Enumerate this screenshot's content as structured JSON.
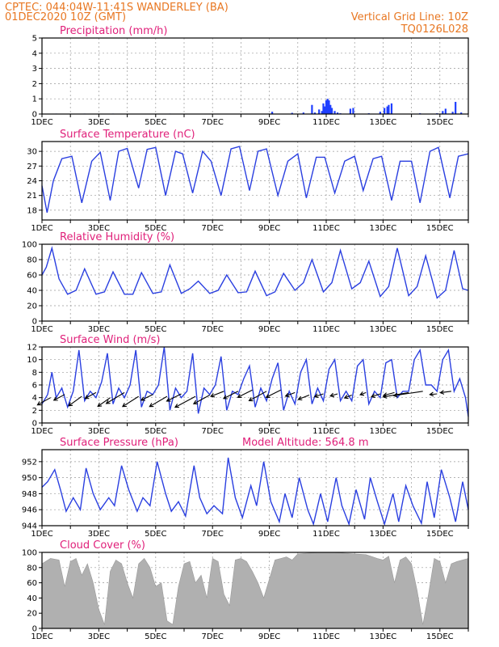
{
  "header": {
    "line1_left": "CPTEC:   044:04W-11:41S  WANDERLEY (BA)",
    "line2_left": "01DEC2020 10Z (GMT)",
    "line1_right": "Vertical Grid Line: 10Z",
    "line2_right": "TQ0126L028"
  },
  "colors": {
    "header": "#e87722",
    "panel_title": "#e0207a",
    "line_series": "#2a3fe0",
    "precip_bars": "#1f3fff",
    "cloud_fill": "#b0b0b0"
  },
  "x_axis": {
    "tick_labels": [
      "1DEC",
      "3DEC",
      "5DEC",
      "7DEC",
      "9DEC",
      "11DEC",
      "13DEC",
      "15DEC"
    ],
    "range_days": [
      1,
      16
    ]
  },
  "chart_data": [
    {
      "type": "bar",
      "title": "Precipitation (mm/h)",
      "ylim": [
        0,
        5
      ],
      "yticks": [
        0,
        1,
        2,
        3,
        4,
        5
      ],
      "x": [
        1.5,
        2.5,
        3.5,
        5.5,
        9.1,
        9.8,
        10.2,
        10.5,
        10.6,
        10.75,
        10.85,
        10.9,
        10.95,
        11.0,
        11.05,
        11.1,
        11.15,
        11.2,
        11.3,
        11.4,
        11.5,
        11.85,
        11.95,
        12.5,
        12.9,
        13.05,
        13.15,
        13.2,
        13.3,
        14.3,
        14.9,
        15.1,
        15.2,
        15.45,
        15.55,
        15.75
      ],
      "values": [
        0.03,
        0.03,
        0.03,
        0.03,
        0.15,
        0.08,
        0.1,
        0.6,
        0.1,
        0.3,
        0.2,
        0.7,
        0.5,
        0.9,
        1.0,
        0.9,
        0.6,
        0.4,
        0.2,
        0.1,
        0.05,
        0.35,
        0.4,
        0.05,
        0.15,
        0.4,
        0.5,
        0.6,
        0.7,
        0.05,
        0.05,
        0.2,
        0.35,
        0.15,
        0.8,
        0.1
      ]
    },
    {
      "type": "line",
      "title": "Surface Temperature (nC)",
      "ylim": [
        16,
        32
      ],
      "yticks": [
        18,
        21,
        24,
        27,
        30
      ],
      "x": [
        1.0,
        1.18,
        1.4,
        1.7,
        2.05,
        2.4,
        2.75,
        3.05,
        3.4,
        3.7,
        4.0,
        4.4,
        4.7,
        5.0,
        5.35,
        5.7,
        5.95,
        6.3,
        6.65,
        6.95,
        7.3,
        7.65,
        7.95,
        8.3,
        8.6,
        8.9,
        9.3,
        9.65,
        10.0,
        10.3,
        10.65,
        10.95,
        11.3,
        11.65,
        12.0,
        12.3,
        12.65,
        12.95,
        13.3,
        13.6,
        14.0,
        14.3,
        14.65,
        14.95,
        15.35,
        15.65,
        16.0
      ],
      "values": [
        23.0,
        17.5,
        24.0,
        28.5,
        29.0,
        19.5,
        28.0,
        29.8,
        20.0,
        30.0,
        30.6,
        22.5,
        30.4,
        30.8,
        21.0,
        30.0,
        29.5,
        21.5,
        30.0,
        28.0,
        21.0,
        30.5,
        31.0,
        22.0,
        30.0,
        30.5,
        21.0,
        28.0,
        29.5,
        20.5,
        28.8,
        28.8,
        21.5,
        28.0,
        29.0,
        22.0,
        28.5,
        29.0,
        20.0,
        28.0,
        28.0,
        19.5,
        30.0,
        30.8,
        20.5,
        29.0,
        29.5
      ]
    },
    {
      "type": "line",
      "title": "Relative Humidity (%)",
      "ylim": [
        0,
        100
      ],
      "yticks": [
        0,
        20,
        40,
        60,
        80,
        100
      ],
      "x": [
        1.0,
        1.15,
        1.35,
        1.6,
        1.9,
        2.2,
        2.5,
        2.9,
        3.2,
        3.5,
        3.9,
        4.2,
        4.5,
        4.9,
        5.2,
        5.5,
        5.9,
        6.2,
        6.5,
        6.9,
        7.2,
        7.5,
        7.9,
        8.2,
        8.5,
        8.9,
        9.2,
        9.5,
        9.9,
        10.2,
        10.5,
        10.9,
        11.2,
        11.5,
        11.9,
        12.2,
        12.5,
        12.9,
        13.2,
        13.5,
        13.9,
        14.2,
        14.5,
        14.9,
        15.2,
        15.5,
        15.8,
        16.0
      ],
      "values": [
        60.0,
        70.0,
        95.0,
        55.0,
        35.0,
        40.0,
        68.0,
        35.0,
        38.0,
        64.0,
        35.0,
        35.0,
        63.0,
        36.0,
        38.0,
        73.0,
        36.0,
        42.0,
        52.0,
        36.0,
        40.0,
        60.0,
        37.0,
        38.0,
        65.0,
        33.0,
        38.0,
        62.0,
        40.0,
        50.0,
        80.0,
        38.0,
        50.0,
        92.0,
        42.0,
        50.0,
        78.0,
        32.0,
        45.0,
        95.0,
        33.0,
        45.0,
        85.0,
        30.0,
        40.0,
        92.0,
        42.0,
        40.0
      ]
    },
    {
      "type": "line",
      "title": "Surface Wind (m/s)",
      "ylim": [
        0,
        12
      ],
      "yticks": [
        0,
        2,
        4,
        6,
        8,
        10,
        12
      ],
      "x": [
        1.0,
        1.2,
        1.35,
        1.5,
        1.7,
        1.9,
        2.1,
        2.3,
        2.5,
        2.7,
        2.9,
        3.1,
        3.3,
        3.5,
        3.7,
        3.9,
        4.1,
        4.3,
        4.5,
        4.7,
        4.9,
        5.1,
        5.3,
        5.5,
        5.7,
        5.9,
        6.1,
        6.3,
        6.5,
        6.7,
        6.9,
        7.1,
        7.3,
        7.5,
        7.7,
        7.9,
        8.1,
        8.3,
        8.5,
        8.7,
        8.9,
        9.1,
        9.3,
        9.5,
        9.7,
        9.9,
        10.1,
        10.3,
        10.5,
        10.7,
        10.9,
        11.1,
        11.3,
        11.5,
        11.7,
        11.9,
        12.1,
        12.3,
        12.5,
        12.7,
        12.9,
        13.1,
        13.3,
        13.5,
        13.7,
        13.9,
        14.1,
        14.3,
        14.5,
        14.7,
        14.9,
        15.1,
        15.3,
        15.5,
        15.7,
        15.9,
        16.0
      ],
      "values": [
        3.0,
        4.5,
        8.0,
        4.0,
        5.5,
        2.5,
        5.0,
        11.5,
        3.5,
        5.0,
        4.0,
        6.5,
        11.0,
        3.0,
        5.5,
        4.0,
        6.0,
        11.5,
        2.5,
        5.0,
        4.5,
        6.0,
        12.0,
        2.0,
        5.5,
        4.0,
        5.0,
        11.0,
        1.5,
        5.5,
        4.5,
        6.0,
        10.5,
        2.0,
        5.0,
        4.5,
        7.0,
        9.0,
        2.5,
        5.5,
        3.5,
        7.0,
        9.5,
        2.0,
        5.0,
        3.0,
        8.0,
        10.0,
        3.0,
        5.5,
        3.5,
        8.5,
        10.0,
        3.5,
        5.0,
        3.5,
        9.0,
        10.0,
        3.0,
        5.0,
        4.0,
        9.5,
        10.0,
        4.0,
        5.0,
        5.0,
        10.0,
        11.5,
        6.0,
        6.0,
        5.0,
        10.0,
        11.5,
        5.0,
        7.0,
        4.0,
        1.0
      ],
      "vectors": {
        "x": [
          1.3,
          1.8,
          2.4,
          2.9,
          3.4,
          3.9,
          4.4,
          4.9,
          5.4,
          5.9,
          6.4,
          6.9,
          7.4,
          7.9,
          8.4,
          8.9,
          9.4,
          9.9,
          10.4,
          10.9,
          11.4,
          11.9,
          12.4,
          12.9,
          13.4,
          13.9,
          14.4,
          14.9,
          15.4
        ],
        "u": [
          -1.8,
          -1.5,
          -1.8,
          -1.5,
          -1.7,
          -2.5,
          -2.2,
          -1.6,
          -2.4,
          -2.0,
          -2.8,
          -2.2,
          -1.8,
          -2.0,
          -2.0,
          -2.4,
          -2.0,
          -1.3,
          -1.5,
          -1.2,
          -1.0,
          -1.0,
          -0.8,
          -1.2,
          -1.5,
          -3.5,
          -4.0,
          -1.0,
          -1.5
        ],
        "v": [
          -1.0,
          -0.8,
          -1.3,
          -0.8,
          -1.2,
          -1.5,
          -1.4,
          -0.8,
          -1.4,
          -1.0,
          -1.5,
          -1.2,
          -0.7,
          -1.0,
          -1.0,
          -1.3,
          -1.0,
          -0.5,
          -0.6,
          -0.4,
          -0.3,
          -0.4,
          -0.3,
          -0.4,
          -0.4,
          -0.6,
          -0.6,
          -0.1,
          -0.2
        ],
        "y": [
          4.0,
          4.5,
          4.2,
          4.8,
          4.0,
          4.8,
          4.2,
          4.5,
          4.2,
          4.6,
          4.2,
          4.4,
          5.0,
          5.0,
          5.2,
          5.0,
          5.2,
          4.8,
          4.4,
          4.6,
          4.6,
          4.4,
          4.8,
          4.6,
          4.8,
          4.8,
          5.0,
          4.6,
          5.0
        ]
      }
    },
    {
      "type": "line",
      "title": "Surface Pressure (hPa)",
      "annotation": "Model Altitude: 564.8 m",
      "ylim": [
        944,
        953.5
      ],
      "yticks": [
        944,
        946,
        948,
        950,
        952
      ],
      "x": [
        1.0,
        1.2,
        1.45,
        1.65,
        1.85,
        2.1,
        2.35,
        2.55,
        2.8,
        3.05,
        3.35,
        3.55,
        3.8,
        4.05,
        4.35,
        4.55,
        4.8,
        5.05,
        5.35,
        5.55,
        5.8,
        6.05,
        6.35,
        6.55,
        6.8,
        7.05,
        7.35,
        7.55,
        7.8,
        8.05,
        8.35,
        8.55,
        8.8,
        9.05,
        9.35,
        9.55,
        9.8,
        10.05,
        10.35,
        10.55,
        10.8,
        11.05,
        11.35,
        11.55,
        11.8,
        12.05,
        12.35,
        12.55,
        12.8,
        13.05,
        13.35,
        13.55,
        13.8,
        14.05,
        14.35,
        14.55,
        14.8,
        15.05,
        15.35,
        15.55,
        15.8,
        16.0
      ],
      "values": [
        948.8,
        949.5,
        951.0,
        948.5,
        945.8,
        947.5,
        946.0,
        951.2,
        948.0,
        946.0,
        947.5,
        946.5,
        951.5,
        948.5,
        945.8,
        947.5,
        946.5,
        952.0,
        948.0,
        945.8,
        947.0,
        945.2,
        951.5,
        947.5,
        945.5,
        946.5,
        945.5,
        952.5,
        947.5,
        945.0,
        949.0,
        946.5,
        952.0,
        947.0,
        944.5,
        948.0,
        945.0,
        950.0,
        946.0,
        944.2,
        948.0,
        944.5,
        950.0,
        946.5,
        944.2,
        948.5,
        944.8,
        950.0,
        947.0,
        944.2,
        948.0,
        944.5,
        949.0,
        946.5,
        944.3,
        949.5,
        945.0,
        951.0,
        947.5,
        944.5,
        949.5,
        946.0
      ]
    },
    {
      "type": "area",
      "title": "Cloud Cover (%)",
      "ylim": [
        0,
        100
      ],
      "yticks": [
        0,
        20,
        40,
        60,
        80,
        100
      ],
      "x": [
        1.0,
        1.3,
        1.6,
        1.8,
        2.0,
        2.2,
        2.4,
        2.6,
        2.8,
        3.0,
        3.2,
        3.4,
        3.6,
        3.8,
        4.0,
        4.2,
        4.4,
        4.6,
        4.8,
        5.0,
        5.2,
        5.4,
        5.6,
        5.8,
        6.0,
        6.2,
        6.4,
        6.6,
        6.8,
        7.0,
        7.2,
        7.4,
        7.6,
        7.8,
        8.0,
        8.2,
        8.4,
        8.6,
        8.8,
        9.0,
        9.2,
        9.4,
        9.6,
        9.8,
        10.0,
        10.4,
        10.8,
        11.2,
        11.6,
        12.0,
        12.4,
        12.8,
        13.0,
        13.2,
        13.4,
        13.6,
        13.8,
        14.0,
        14.2,
        14.4,
        14.6,
        14.8,
        15.0,
        15.2,
        15.4,
        15.6,
        15.8,
        16.0
      ],
      "values": [
        85,
        92,
        90,
        55,
        88,
        92,
        70,
        85,
        60,
        25,
        5,
        75,
        90,
        85,
        60,
        40,
        85,
        92,
        80,
        55,
        60,
        10,
        5,
        55,
        85,
        88,
        60,
        70,
        40,
        92,
        88,
        45,
        30,
        90,
        92,
        88,
        75,
        60,
        40,
        65,
        90,
        92,
        94,
        90,
        98,
        99,
        100,
        100,
        99,
        98,
        97,
        92,
        90,
        95,
        60,
        90,
        94,
        85,
        50,
        5,
        45,
        92,
        88,
        60,
        85,
        88,
        90,
        92
      ]
    }
  ]
}
